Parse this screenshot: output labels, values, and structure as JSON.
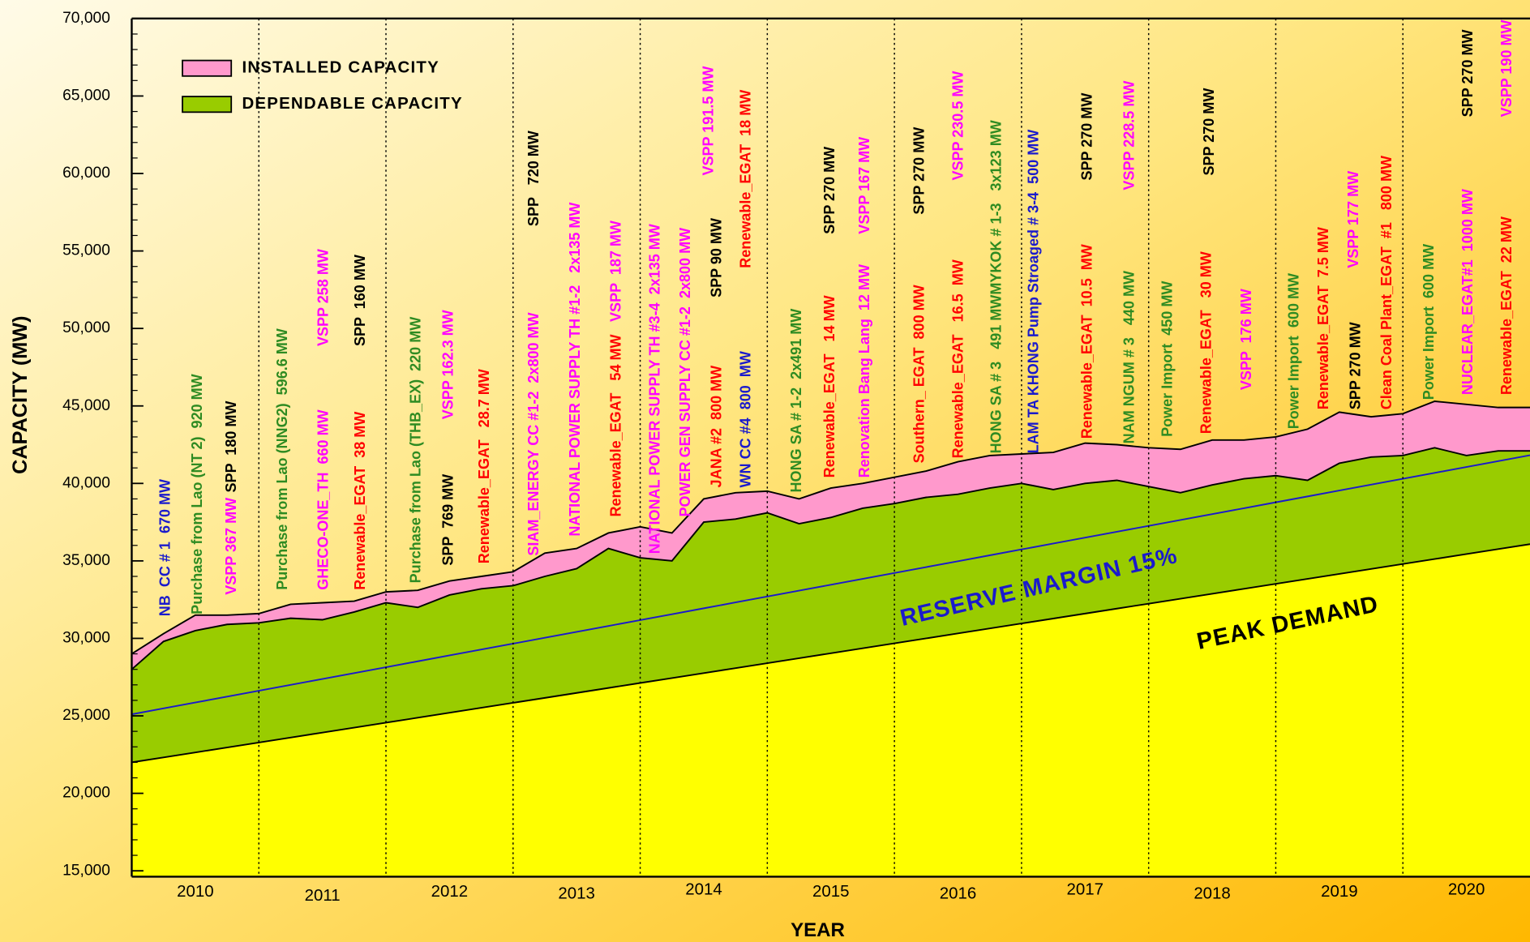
{
  "chart_data": {
    "type": "area",
    "x_label": "YEAR",
    "y_label": "CAPACITY (MW)",
    "x": [
      2010,
      2010.25,
      2010.5,
      2010.75,
      2011,
      2011.25,
      2011.5,
      2011.75,
      2012,
      2012.25,
      2012.5,
      2012.75,
      2013,
      2013.25,
      2013.5,
      2013.75,
      2014,
      2014.25,
      2014.5,
      2014.75,
      2015,
      2015.25,
      2015.5,
      2015.75,
      2016,
      2016.25,
      2016.5,
      2016.75,
      2017,
      2017.25,
      2017.5,
      2017.75,
      2018,
      2018.25,
      2018.5,
      2018.75,
      2019,
      2019.25,
      2019.5,
      2019.75,
      2020,
      2020.25,
      2020.5,
      2020.75,
      2021
    ],
    "series": [
      {
        "name": "INSTALLED CAPACITY",
        "fill": "#ff99cc",
        "line": "#000000",
        "values": [
          29000,
          30300,
          31500,
          31500,
          31600,
          32200,
          32300,
          32400,
          33000,
          33100,
          33700,
          34000,
          34300,
          35500,
          35800,
          36800,
          37200,
          36800,
          39000,
          39400,
          39500,
          39000,
          39700,
          40000,
          40400,
          40800,
          41400,
          41800,
          41900,
          42000,
          42600,
          42500,
          42300,
          42200,
          42800,
          42800,
          43000,
          43500,
          44600,
          44300,
          44500,
          45300,
          45100,
          44900,
          44900
        ]
      },
      {
        "name": "DEPENDABLE CAPACITY",
        "fill": "#99cc00",
        "line": "#000000",
        "values": [
          28000,
          29800,
          30500,
          30900,
          31000,
          31300,
          31200,
          31700,
          32300,
          32000,
          32800,
          33200,
          33400,
          34000,
          34500,
          35800,
          35200,
          35000,
          37500,
          37700,
          38100,
          37400,
          37800,
          38400,
          38700,
          39100,
          39300,
          39700,
          40000,
          39600,
          40000,
          40200,
          39800,
          39400,
          39900,
          40300,
          40500,
          40200,
          41300,
          41700,
          41800,
          42300,
          41800,
          42100,
          42100
        ]
      },
      {
        "name": "PEAK  DEMAND",
        "fill": "#ffff00",
        "line": "#000000",
        "values": [
          22000,
          22320,
          22640,
          22960,
          23280,
          23600,
          23920,
          24240,
          24560,
          24880,
          25200,
          25520,
          25840,
          26160,
          26480,
          26800,
          27120,
          27440,
          27760,
          28080,
          28400,
          28720,
          29040,
          29360,
          29680,
          30000,
          30320,
          30640,
          30960,
          31280,
          31600,
          31920,
          32240,
          32560,
          32880,
          33200,
          33520,
          33840,
          34160,
          34480,
          34800,
          35120,
          35440,
          35760,
          36080
        ]
      },
      {
        "name": "RESERVE  MARGIN 15%",
        "fill": null,
        "line": "#1a1acc",
        "values": [
          25100,
          25480,
          25860,
          26240,
          26620,
          27000,
          27380,
          27760,
          28140,
          28520,
          28900,
          29280,
          29660,
          30040,
          30420,
          30800,
          31180,
          31560,
          31940,
          32320,
          32700,
          33080,
          33460,
          33840,
          34220,
          34600,
          34980,
          35360,
          35740,
          36120,
          36500,
          36880,
          37260,
          37640,
          38020,
          38400,
          38780,
          39160,
          39540,
          39920,
          40300,
          40680,
          41060,
          41440,
          41820
        ]
      }
    ],
    "legend": {
      "position": "top-left",
      "series": [
        0,
        1
      ]
    },
    "xlim": [
      2010,
      2021
    ],
    "xticks": [
      {
        "value": 2010.5,
        "label": "2010"
      },
      {
        "value": 2011.5,
        "label": "2011"
      },
      {
        "value": 2012.5,
        "label": "2012"
      },
      {
        "value": 2013.5,
        "label": "2013"
      },
      {
        "value": 2014.5,
        "label": "2014"
      },
      {
        "value": 2015.5,
        "label": "2015"
      },
      {
        "value": 2016.5,
        "label": "2016"
      },
      {
        "value": 2017.5,
        "label": "2017"
      },
      {
        "value": 2018.5,
        "label": "2018"
      },
      {
        "value": 2019.5,
        "label": "2019"
      },
      {
        "value": 2020.5,
        "label": "2020"
      }
    ],
    "vlines": [
      2011,
      2012,
      2013,
      2014,
      2015,
      2016,
      2017,
      2018,
      2019,
      2020
    ],
    "vline_style": "dotted",
    "ylim": [
      15000,
      70000
    ],
    "yticks": [
      {
        "value": 15000,
        "label": "15,000"
      },
      {
        "value": 20000,
        "label": "20,000"
      },
      {
        "value": 25000,
        "label": "25,000"
      },
      {
        "value": 30000,
        "label": "30,000"
      },
      {
        "value": 35000,
        "label": "35,000"
      },
      {
        "value": 40000,
        "label": "40,000"
      },
      {
        "value": 45000,
        "label": "45,000"
      },
      {
        "value": 50000,
        "label": "50,000"
      },
      {
        "value": 55000,
        "label": "55,000"
      },
      {
        "value": 60000,
        "label": "60,000"
      },
      {
        "value": 65000,
        "label": "65,000"
      },
      {
        "value": 70000,
        "label": "70,000"
      }
    ],
    "annotations": [
      {
        "text": "NB  CC # 1  670 MW",
        "color": "#1a1acc"
      },
      {
        "text": "Purchase from Lao (NT 2)  920 MW",
        "color": "#2e8b22"
      },
      {
        "text": "VSPP 367 MW",
        "color": "#ff00ff"
      },
      {
        "text": "SPP  180 MW",
        "color": "#000000"
      },
      {
        "text": "Purchase from Lao (NNG2)  596.6 MW",
        "color": "#2e8b22"
      },
      {
        "text": "GHECO-ONE_TH  660 MW",
        "color": "#ff00ff"
      },
      {
        "text": "VSPP 258 MW",
        "color": "#ff00ff"
      },
      {
        "text": "Renewable_EGAT  38 MW",
        "color": "#ff0000"
      },
      {
        "text": "SPP  160 MW",
        "color": "#000000"
      },
      {
        "text": "Purchase from Lao (THB_EX)  220 MW",
        "color": "#2e8b22"
      },
      {
        "text": "SPP  769 MW",
        "color": "#000000"
      },
      {
        "text": "VSPP 162.3 MW",
        "color": "#ff00ff"
      },
      {
        "text": "Renewable_EGAT   28.7 MW",
        "color": "#ff0000"
      },
      {
        "text": "SIAM_ENERGY CC #1-2  2x800 MW",
        "color": "#ff00ff"
      },
      {
        "text": "SPP   720 MW",
        "color": "#000000"
      },
      {
        "text": "NATIONAL POWER SUPPLY TH #1-2   2x135 MW",
        "color": "#ff00ff"
      },
      {
        "text": "Renewable_EGAT   54 MW",
        "color": "#ff0000"
      },
      {
        "text": "VSPP  187 MW",
        "color": "#ff00ff"
      },
      {
        "text": "NATIONAL POWER SUPPLY TH #3-4  2x135 MW",
        "color": "#ff00ff"
      },
      {
        "text": "POWER GEN SUPPLY CC #1-2  2x800 MW",
        "color": "#ff00ff"
      },
      {
        "text": "VSPP 191.5 MW",
        "color": "#ff00ff"
      },
      {
        "text": "JANA #2  800 MW",
        "color": "#ff0000"
      },
      {
        "text": "SPP 90 MW",
        "color": "#000000"
      },
      {
        "text": "Renewable_EGAT  18 MW",
        "color": "#ff0000"
      },
      {
        "text": "WN CC #4  800  MW",
        "color": "#1a1acc"
      },
      {
        "text": "HONG SA # 1-2  2x491 MW",
        "color": "#2e8b22"
      },
      {
        "text": "Renewable_EGAT   14 MW",
        "color": "#ff0000"
      },
      {
        "text": "SPP 270 MW",
        "color": "#000000"
      },
      {
        "text": "Renovation Bang Lang  12 MW",
        "color": "#ff00ff"
      },
      {
        "text": "VSPP 167 MW",
        "color": "#ff00ff"
      },
      {
        "text": "Southern_ EGAT  800 MW",
        "color": "#ff0000"
      },
      {
        "text": "SPP 270 MW",
        "color": "#000000"
      },
      {
        "text": "Renewable_EGAT   16.5  MW",
        "color": "#ff0000"
      },
      {
        "text": "VSPP 230.5 MW",
        "color": "#ff00ff"
      },
      {
        "text": "HONG SA # 3   491 MWMYKOK # 1-3   3x123 MW",
        "color": "#2e8b22"
      },
      {
        "text": "LAM TA KHONG Pump Stroaged # 3-4  500 MW",
        "color": "#1a1acc"
      },
      {
        "text": "SPP 270 MW",
        "color": "#000000"
      },
      {
        "text": "Renewable_EGAT  10.5  MW",
        "color": "#ff0000"
      },
      {
        "text": "NAM NGUM # 3   440 MW",
        "color": "#2e8b22"
      },
      {
        "text": "VSPP 228.5 MW",
        "color": "#ff00ff"
      },
      {
        "text": "SPP 270 MW",
        "color": "#000000"
      },
      {
        "text": "Power Import  450 MW",
        "color": "#2e8b22"
      },
      {
        "text": "Renewable_EGAT   30 MW",
        "color": "#ff0000"
      },
      {
        "text": "VSPP  176 MW",
        "color": "#ff00ff"
      },
      {
        "text": "Power Import  600 MW",
        "color": "#2e8b22"
      },
      {
        "text": "Renewable_EGAT  7.5 MW",
        "color": "#ff0000"
      },
      {
        "text": "VSPP 177 MW",
        "color": "#ff00ff"
      },
      {
        "text": "SPP 270 MW",
        "color": "#000000"
      },
      {
        "text": "Clean Coal Plant_EGAT  #1   800 MW",
        "color": "#ff0000"
      },
      {
        "text": "Power Import  600 MW",
        "color": "#2e8b22"
      },
      {
        "text": "NUCLEAR_EGAT#1  1000 MW",
        "color": "#ff00ff"
      },
      {
        "text": "SPP 270 MW",
        "color": "#000000"
      },
      {
        "text": "Renewable_EGAT  22 MW",
        "color": "#ff0000"
      },
      {
        "text": "VSPP 190 MW",
        "color": "#ff00ff"
      }
    ]
  }
}
